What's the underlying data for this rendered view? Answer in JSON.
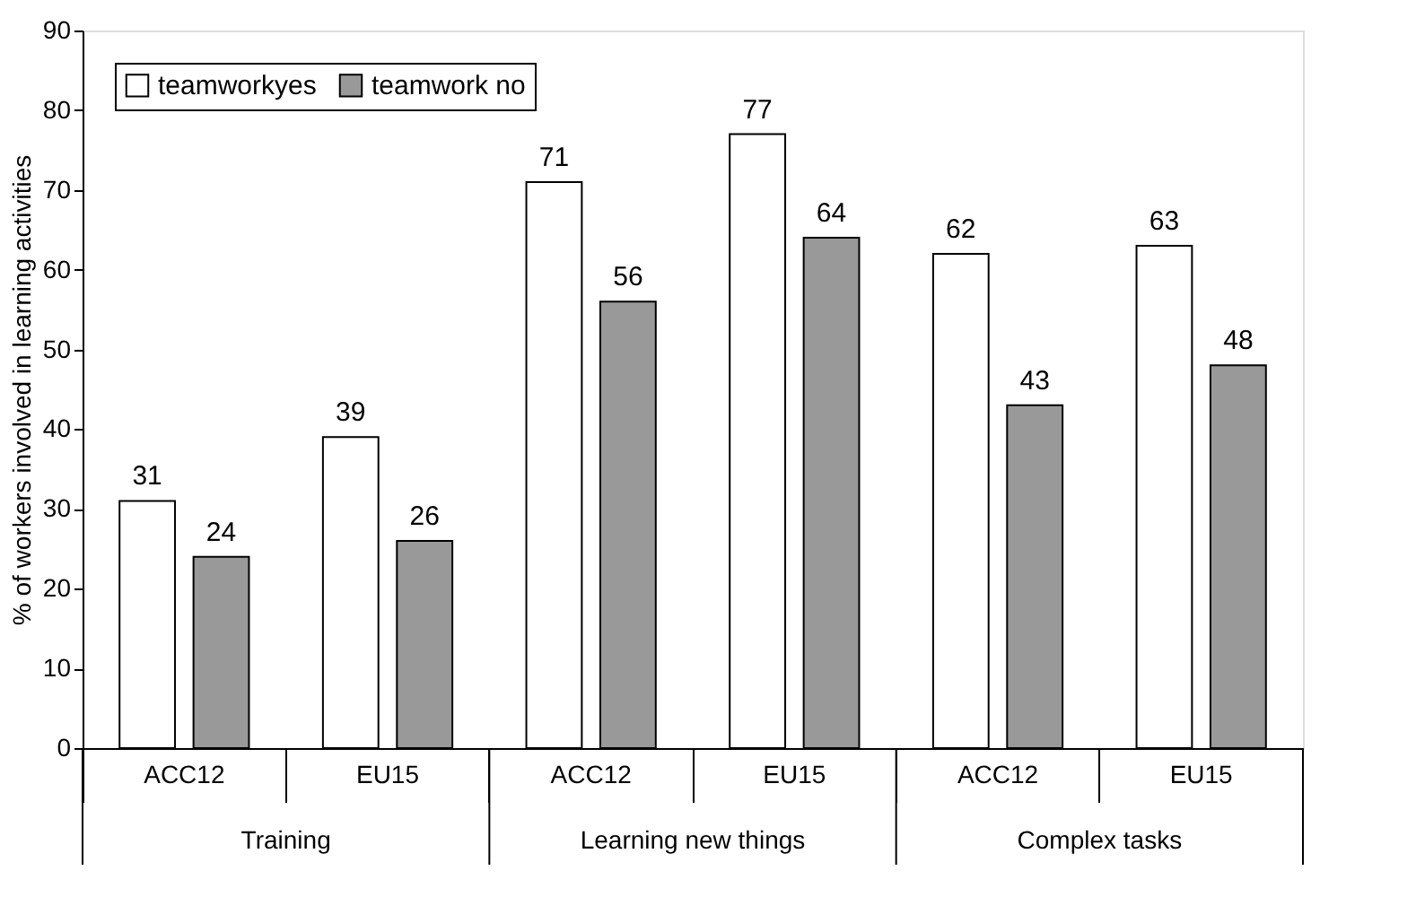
{
  "chart_data": {
    "type": "bar",
    "ylabel": "% of workers involved in learning activities",
    "categories": [
      "ACC12",
      "EU15",
      "ACC12",
      "EU15",
      "ACC12",
      "EU15"
    ],
    "series": [
      {
        "name": "teamworkyes",
        "color": "#ffffff",
        "values": [
          31,
          39,
          71,
          77,
          62,
          63
        ]
      },
      {
        "name": "teamwork no",
        "color": "#999999",
        "values": [
          24,
          26,
          56,
          64,
          43,
          48
        ]
      }
    ],
    "annotations": [
      "Training",
      "Learning new things",
      "Complex tasks"
    ],
    "ylim": [
      0,
      90
    ],
    "yticks": [
      0,
      10,
      20,
      30,
      40,
      50,
      60,
      70,
      80,
      90
    ],
    "data_labels": true,
    "grid": false,
    "legend": "top left"
  }
}
